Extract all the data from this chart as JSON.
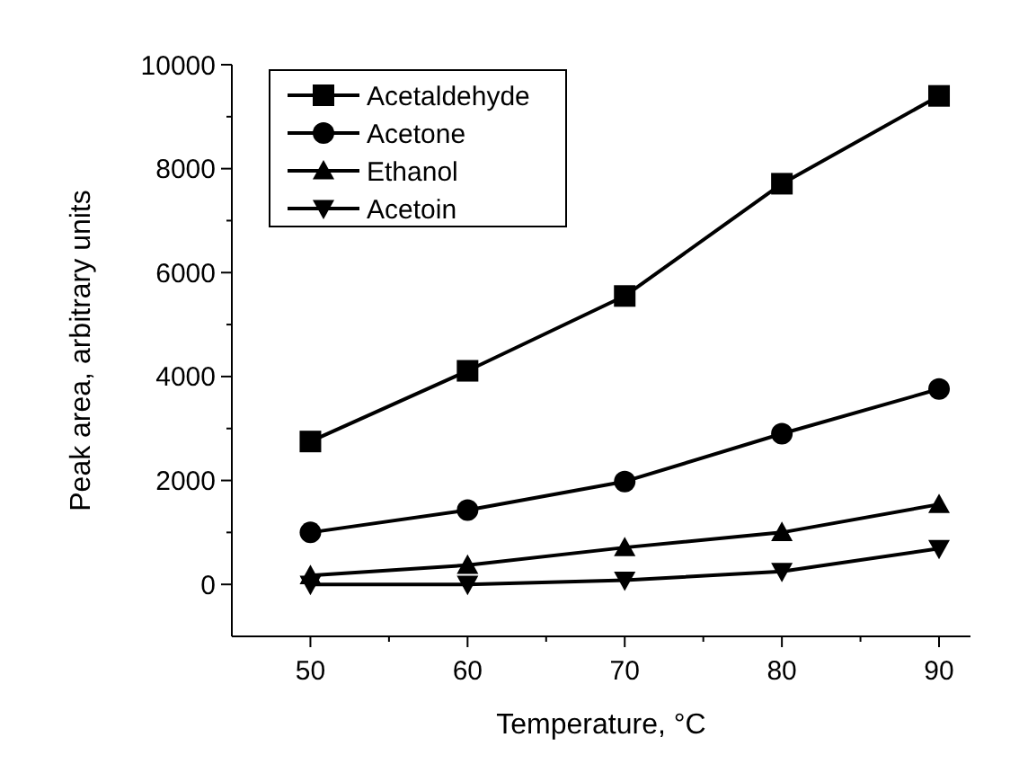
{
  "chart_data": {
    "type": "line",
    "xlabel": "Temperature, °C",
    "ylabel": "Peak area, arbitrary units",
    "x": [
      50,
      60,
      70,
      80,
      90
    ],
    "series": [
      {
        "name": "Acetaldehyde",
        "color": "#000000",
        "marker": "square",
        "values": [
          2750,
          4110,
          5550,
          7710,
          9400
        ]
      },
      {
        "name": "Acetone",
        "color": "#000000",
        "marker": "circle",
        "values": [
          1000,
          1430,
          1980,
          2900,
          3760
        ]
      },
      {
        "name": "Ethanol",
        "color": "#000000",
        "marker": "triangle",
        "values": [
          170,
          370,
          710,
          1000,
          1540
        ]
      },
      {
        "name": "Acetoin",
        "color": "#000000",
        "marker": "triangle-down",
        "values": [
          0,
          0,
          80,
          250,
          690
        ]
      }
    ],
    "xlim": [
      45,
      92
    ],
    "xticks": [
      50,
      {
        "value": 55,
        "label": null
      },
      60,
      {
        "value": 65,
        "label": null
      },
      70,
      {
        "value": 75,
        "label": null
      },
      80,
      {
        "value": 85,
        "label": null
      },
      90
    ],
    "ylim": [
      -1000,
      10000
    ],
    "yticks": [
      0,
      {
        "value": 1000,
        "label": null
      },
      2000,
      {
        "value": 3000,
        "label": null
      },
      4000,
      {
        "value": 5000,
        "label": null
      },
      6000,
      {
        "value": 7000,
        "label": null
      },
      8000,
      {
        "value": 9000,
        "label": null
      },
      10000
    ],
    "grid": false,
    "legend": "top left",
    "line_style": "solid"
  }
}
